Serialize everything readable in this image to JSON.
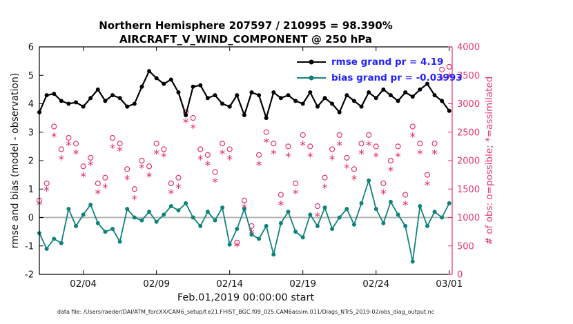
{
  "chart_data": {
    "type": "line",
    "title_line1": "Northern Hemisphere 207597 / 210995 = 98.390%",
    "title_line2": "AIRCRAFT_V_WIND_COMPONENT @ 250 hPa",
    "xlabel": "Feb.01,2019 00:00:00 start",
    "ylabel_left": "rmse and bias (model - observation)",
    "ylabel_right": "# of obs: o=possible; *=assimilated",
    "caption": "data file: /Users/raeder/DAI/ATM_forcXX/CAM6_setup/f.e21.FHIST_BGC.f09_025.CAM6assim.011/Diags_NTrS_2019-02/obs_diag_output.nc",
    "xlim": [
      1,
      29.2
    ],
    "ylim_left": [
      -2,
      6
    ],
    "ylim_right": [
      0,
      4000
    ],
    "grid": false,
    "legend_position": "top-right-inside",
    "legend_text_color": "#2222ff",
    "right_axis_color": "#e5336f",
    "zero_line_color": "#b4b4b4",
    "xticks": {
      "values": [
        4,
        9,
        14,
        19,
        24,
        29
      ],
      "labels": [
        "02/04",
        "02/09",
        "02/14",
        "02/19",
        "02/24",
        "03/01"
      ]
    },
    "yticks_left": [
      -2,
      -1,
      0,
      1,
      2,
      3,
      4,
      5,
      6
    ],
    "yticks_right": [
      0,
      500,
      1000,
      1500,
      2000,
      2500,
      3000,
      3500,
      4000
    ],
    "x": [
      1,
      1.5,
      2,
      2.5,
      3,
      3.5,
      4,
      4.5,
      5,
      5.5,
      6,
      6.5,
      7,
      7.5,
      8,
      8.5,
      9,
      9.5,
      10,
      10.5,
      11,
      11.5,
      12,
      12.5,
      13,
      13.5,
      14,
      14.5,
      15,
      15.5,
      16,
      16.5,
      17,
      17.5,
      18,
      18.5,
      19,
      19.5,
      20,
      20.5,
      21,
      21.5,
      22,
      22.5,
      23,
      23.5,
      24,
      24.5,
      25,
      25.5,
      26,
      26.5,
      27,
      27.5,
      28,
      28.5,
      29
    ],
    "series": [
      {
        "name": "rmse",
        "legend": "rmse grand pr = 4.19",
        "axis": "left",
        "color": "#000000",
        "marker": "dot",
        "line": true,
        "width": 2.2,
        "values": [
          3.7,
          4.3,
          4.35,
          4.1,
          4.0,
          4.05,
          3.9,
          4.2,
          4.5,
          4.1,
          4.3,
          4.2,
          3.9,
          4.0,
          4.6,
          5.15,
          4.9,
          4.7,
          4.85,
          4.4,
          3.6,
          4.6,
          4.65,
          4.2,
          4.3,
          4.0,
          3.9,
          4.3,
          3.6,
          4.4,
          4.3,
          3.5,
          4.4,
          4.2,
          4.3,
          4.1,
          4.0,
          4.4,
          3.9,
          4.2,
          4.0,
          3.7,
          4.3,
          4.1,
          3.9,
          4.4,
          4.2,
          4.5,
          4.3,
          4.1,
          4.4,
          4.25,
          4.5,
          4.7,
          4.3,
          4.1,
          3.75
        ]
      },
      {
        "name": "bias",
        "legend": "bias grand pr = -0.03993",
        "axis": "left",
        "color": "#0e837a",
        "marker": "dot",
        "line": true,
        "width": 1.8,
        "values": [
          -0.55,
          -1.1,
          -0.75,
          -0.9,
          0.3,
          -0.3,
          0.1,
          0.45,
          -0.2,
          -0.5,
          -0.4,
          -0.85,
          0.3,
          0.0,
          -0.1,
          0.2,
          -0.15,
          0.1,
          0.4,
          0.25,
          0.5,
          0.0,
          -0.3,
          0.2,
          -0.1,
          0.35,
          -0.95,
          -0.4,
          0.3,
          -0.6,
          -0.75,
          -0.3,
          -1.3,
          -0.2,
          0.2,
          -0.5,
          -0.7,
          0.1,
          -0.3,
          0.35,
          -0.4,
          0.0,
          0.3,
          -0.25,
          0.5,
          1.3,
          0.3,
          -0.2,
          0.55,
          0.1,
          -0.3,
          -1.55,
          0.4,
          -0.3,
          0.2,
          0.0,
          0.5
        ]
      },
      {
        "name": "possible-obs",
        "legend": "o=possible",
        "axis": "right",
        "color": "#e5336f",
        "marker": "circle",
        "line": false,
        "values": [
          1300,
          1600,
          2600,
          2200,
          2400,
          2300,
          1900,
          2050,
          1600,
          1700,
          2400,
          2300,
          1850,
          1500,
          2000,
          1900,
          2300,
          2200,
          1600,
          1700,
          2850,
          2750,
          2200,
          2100,
          1800,
          2300,
          2200,
          560,
          1300,
          850,
          2100,
          2500,
          2300,
          1400,
          2250,
          1600,
          2450,
          2250,
          1200,
          1700,
          2200,
          2450,
          2050,
          1850,
          2300,
          2450,
          2250,
          1600,
          2000,
          2250,
          1400,
          2600,
          2300,
          1750,
          2300,
          3600,
          3650
        ]
      },
      {
        "name": "assimilated-obs",
        "legend": "*=assimilated",
        "axis": "right",
        "color": "#e5336f",
        "marker": "asterisk",
        "line": false,
        "values": [
          1250,
          1500,
          2450,
          2050,
          2300,
          2150,
          1750,
          1950,
          1450,
          1550,
          2250,
          2200,
          1700,
          1350,
          1900,
          1750,
          2150,
          2100,
          1450,
          1550,
          2700,
          2600,
          2050,
          1950,
          1650,
          2150,
          2050,
          520,
          1200,
          750,
          1950,
          2350,
          2150,
          1250,
          2100,
          1450,
          2300,
          2100,
          1050,
          1550,
          2050,
          2300,
          1900,
          1700,
          2150,
          2300,
          2100,
          1450,
          1850,
          2100,
          1250,
          2450,
          2150,
          1600,
          2150,
          3450,
          3500
        ]
      }
    ]
  }
}
